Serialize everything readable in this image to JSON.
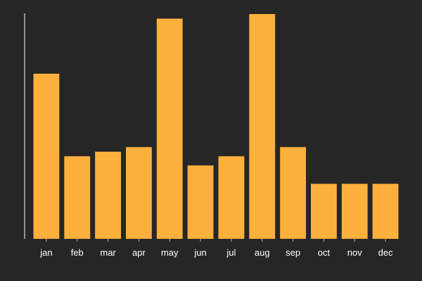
{
  "chart_data": {
    "type": "bar",
    "title": "",
    "xlabel": "",
    "ylabel": "",
    "categories": [
      "jan",
      "feb",
      "mar",
      "apr",
      "may",
      "jun",
      "jul",
      "aug",
      "sep",
      "oct",
      "nov",
      "dec"
    ],
    "values": [
      18,
      9,
      9.5,
      10,
      24,
      8,
      9,
      24.5,
      10,
      6,
      6,
      6
    ],
    "ylim": [
      0,
      24.5
    ],
    "grid": false,
    "y_tick_labels_shown": false,
    "colors": {
      "background": "#262626",
      "bar": "#fdb13c",
      "axis": "#ffffff",
      "text": "#ffffff"
    }
  }
}
